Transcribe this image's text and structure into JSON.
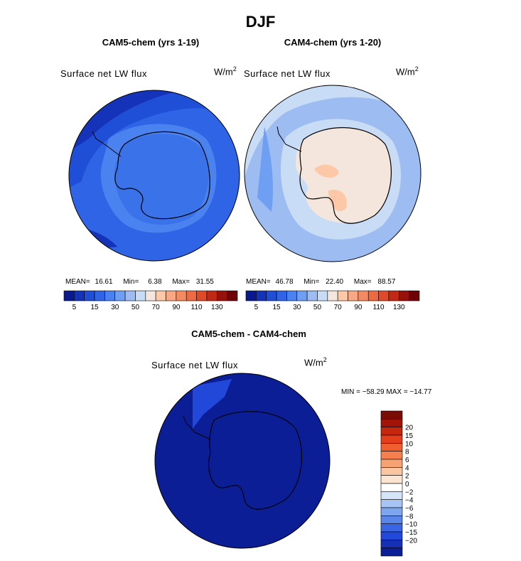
{
  "title": "DJF",
  "units": "W/m",
  "units_exp": "2",
  "panels": [
    {
      "title": "CAM5-chem (yrs 1-19)",
      "field": "Surface net LW flux",
      "stats": {
        "mean_label": "MEAN=",
        "mean": "16.61",
        "min_label": "Min=",
        "min": "6.38",
        "max_label": "Max=",
        "max": "31.55"
      }
    },
    {
      "title": "CAM4-chem (yrs 1-20)",
      "field": "Surface net LW flux",
      "stats": {
        "mean_label": "MEAN=",
        "mean": "46.78",
        "min_label": "Min=",
        "min": "22.40",
        "max_label": "Max=",
        "max": "88.57"
      }
    },
    {
      "title": "CAM5-chem - CAM4-chem",
      "field": "Surface net LW flux",
      "stats_text": "MIN = −58.29 MAX = −14.77"
    }
  ],
  "chart_data": [
    {
      "type": "heatmap",
      "projection": "south-polar stereographic",
      "title": "CAM5-chem (yrs 1-19)",
      "variable": "Surface net LW flux",
      "units": "W/m2",
      "mean": 16.61,
      "min": 6.38,
      "max": 31.55
    },
    {
      "type": "heatmap",
      "projection": "south-polar stereographic",
      "title": "CAM4-chem (yrs 1-20)",
      "variable": "Surface net LW flux",
      "units": "W/m2",
      "mean": 46.78,
      "min": 22.4,
      "max": 88.57
    },
    {
      "type": "heatmap",
      "projection": "south-polar stereographic",
      "title": "CAM5-chem - CAM4-chem",
      "variable": "Surface net LW flux",
      "units": "W/m2",
      "min": -58.29,
      "max": -14.77
    }
  ],
  "colorbar_abs": {
    "colors": [
      "#0a1a8c",
      "#1533b8",
      "#1f4fd6",
      "#2f64e6",
      "#4a82f0",
      "#6f9ff2",
      "#9cbcf2",
      "#c8dcf6",
      "#f4e6dc",
      "#fcc8a8",
      "#f8a882",
      "#f48a62",
      "#ee6a42",
      "#e04a28",
      "#c02a12",
      "#96100c",
      "#6e0008"
    ],
    "tick_labels": [
      "5",
      "15",
      "30",
      "50",
      "70",
      "90",
      "110",
      "130"
    ]
  },
  "colorbar_diff": {
    "colors": [
      "#7a0c06",
      "#a31408",
      "#c5260e",
      "#e23e1a",
      "#f05e30",
      "#f5804e",
      "#f7a272",
      "#fac6a2",
      "#fce4d2",
      "#ffffff",
      "#d6e4fa",
      "#a8c4f4",
      "#7ea6ee",
      "#5a86ea",
      "#3a66e4",
      "#2148d8",
      "#1530b4",
      "#0c1e96"
    ],
    "tick_labels": [
      "20",
      "15",
      "10",
      "8",
      "6",
      "4",
      "2",
      "0",
      "−2",
      "−4",
      "−6",
      "−8",
      "−10",
      "−15",
      "−20"
    ]
  }
}
